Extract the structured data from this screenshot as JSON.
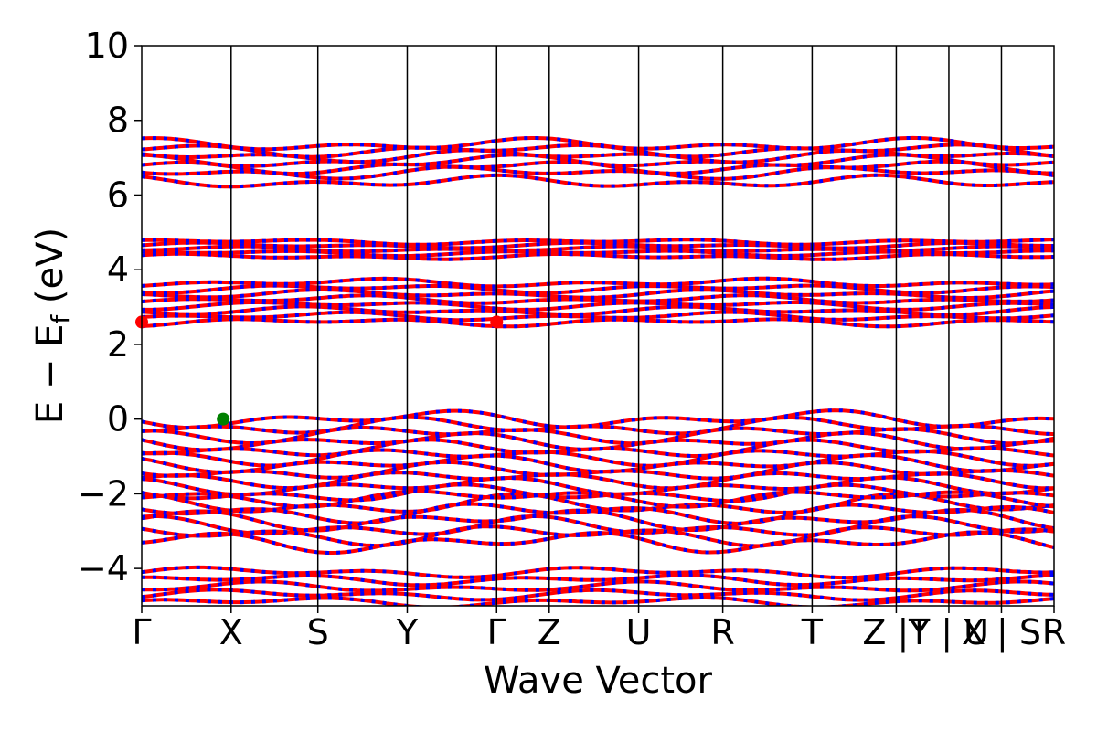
{
  "chart_data": {
    "type": "line",
    "title": "",
    "xlabel": "Wave Vector",
    "ylabel": "E − E",
    "ylabel_sub": "f",
    "ylabel_unit": " (eV)",
    "ylim": [
      -5,
      10
    ],
    "yticks": [
      -4,
      -2,
      0,
      2,
      4,
      6,
      8,
      10
    ],
    "ytick_labels": [
      "−4",
      "−2",
      "0",
      "2",
      "4",
      "6",
      "8",
      "10"
    ],
    "xlim": [
      0,
      10.3
    ],
    "kpoint_positions": [
      0,
      1.7,
      3.35,
      5.05,
      6.75,
      7.75,
      9.45,
      11.05,
      12.75,
      14.35,
      15.35,
      16.35,
      17.35
    ],
    "kpoint_labels": [
      "Γ",
      "X",
      "S",
      "Y",
      "Γ",
      "Z",
      "U",
      "R",
      "T",
      "Z |Y",
      "T | U",
      "X | S",
      "R"
    ],
    "k_total": 17.35,
    "band_colors": {
      "spin_up": "#ff0000",
      "spin_down": "#0000ff"
    },
    "markers": [
      {
        "name": "VBM",
        "k": 1.55,
        "energy": 0.0,
        "color": "#008000"
      },
      {
        "name": "CBM",
        "k": 0.0,
        "energy": 2.6,
        "color": "#ff0000"
      },
      {
        "name": "CBM",
        "k": 6.75,
        "energy": 2.6,
        "color": "#ff0000"
      }
    ],
    "band_groups": [
      {
        "name": "deep",
        "levels": [
          -4.1,
          -4.3,
          -4.5,
          -4.7,
          -4.9
        ],
        "amp": 0.15
      },
      {
        "name": "lower-valence",
        "levels": [
          -2.3,
          -2.5,
          -2.7,
          -2.9,
          -3.1,
          -3.3
        ],
        "amp": 0.3
      },
      {
        "name": "valence",
        "levels": [
          0.0,
          -0.2,
          -0.4,
          -0.6,
          -0.8,
          -1.0,
          -1.2,
          -1.4,
          -1.6,
          -1.8,
          -2.0,
          -2.1
        ],
        "amp": 0.25
      },
      {
        "name": "conduction-1",
        "levels": [
          2.6,
          2.75,
          2.9,
          3.05,
          3.2,
          3.35,
          3.5,
          3.65
        ],
        "amp": 0.12
      },
      {
        "name": "conduction-2",
        "levels": [
          4.35,
          4.45,
          4.55,
          4.65,
          4.75
        ],
        "amp": 0.08
      },
      {
        "name": "conduction-3",
        "levels": [
          6.35,
          6.6,
          6.75,
          6.9,
          7.05,
          7.2,
          7.35
        ],
        "amp": 0.18
      }
    ]
  }
}
